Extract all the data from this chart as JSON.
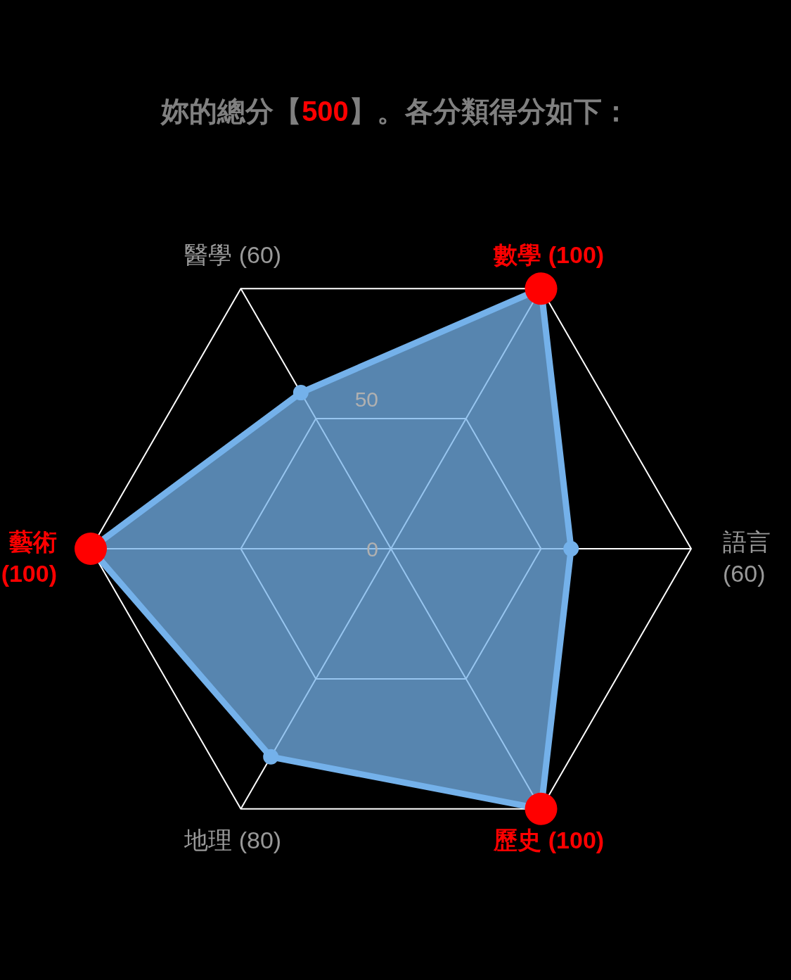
{
  "chart_data": {
    "type": "radar",
    "title": "妳的總分【500】。各分類得分如下：",
    "categories": [
      "數學 (100)",
      "語言 (60)",
      "歷史 (100)",
      "地理 (80)",
      "藝術 (100)",
      "醫學 (60)"
    ],
    "ylim": [
      0,
      100
    ],
    "yticks": [
      0,
      50
    ],
    "marker": "circle",
    "series": [
      {
        "color": "#74b1ea",
        "values": [
          100,
          60,
          100,
          80,
          100,
          60
        ],
        "colors": [
          "#ff0000",
          "#74b1ea",
          "#ff0000",
          "#74b1ea",
          "#ff0000",
          "#74b1ea"
        ]
      }
    ]
  }
}
